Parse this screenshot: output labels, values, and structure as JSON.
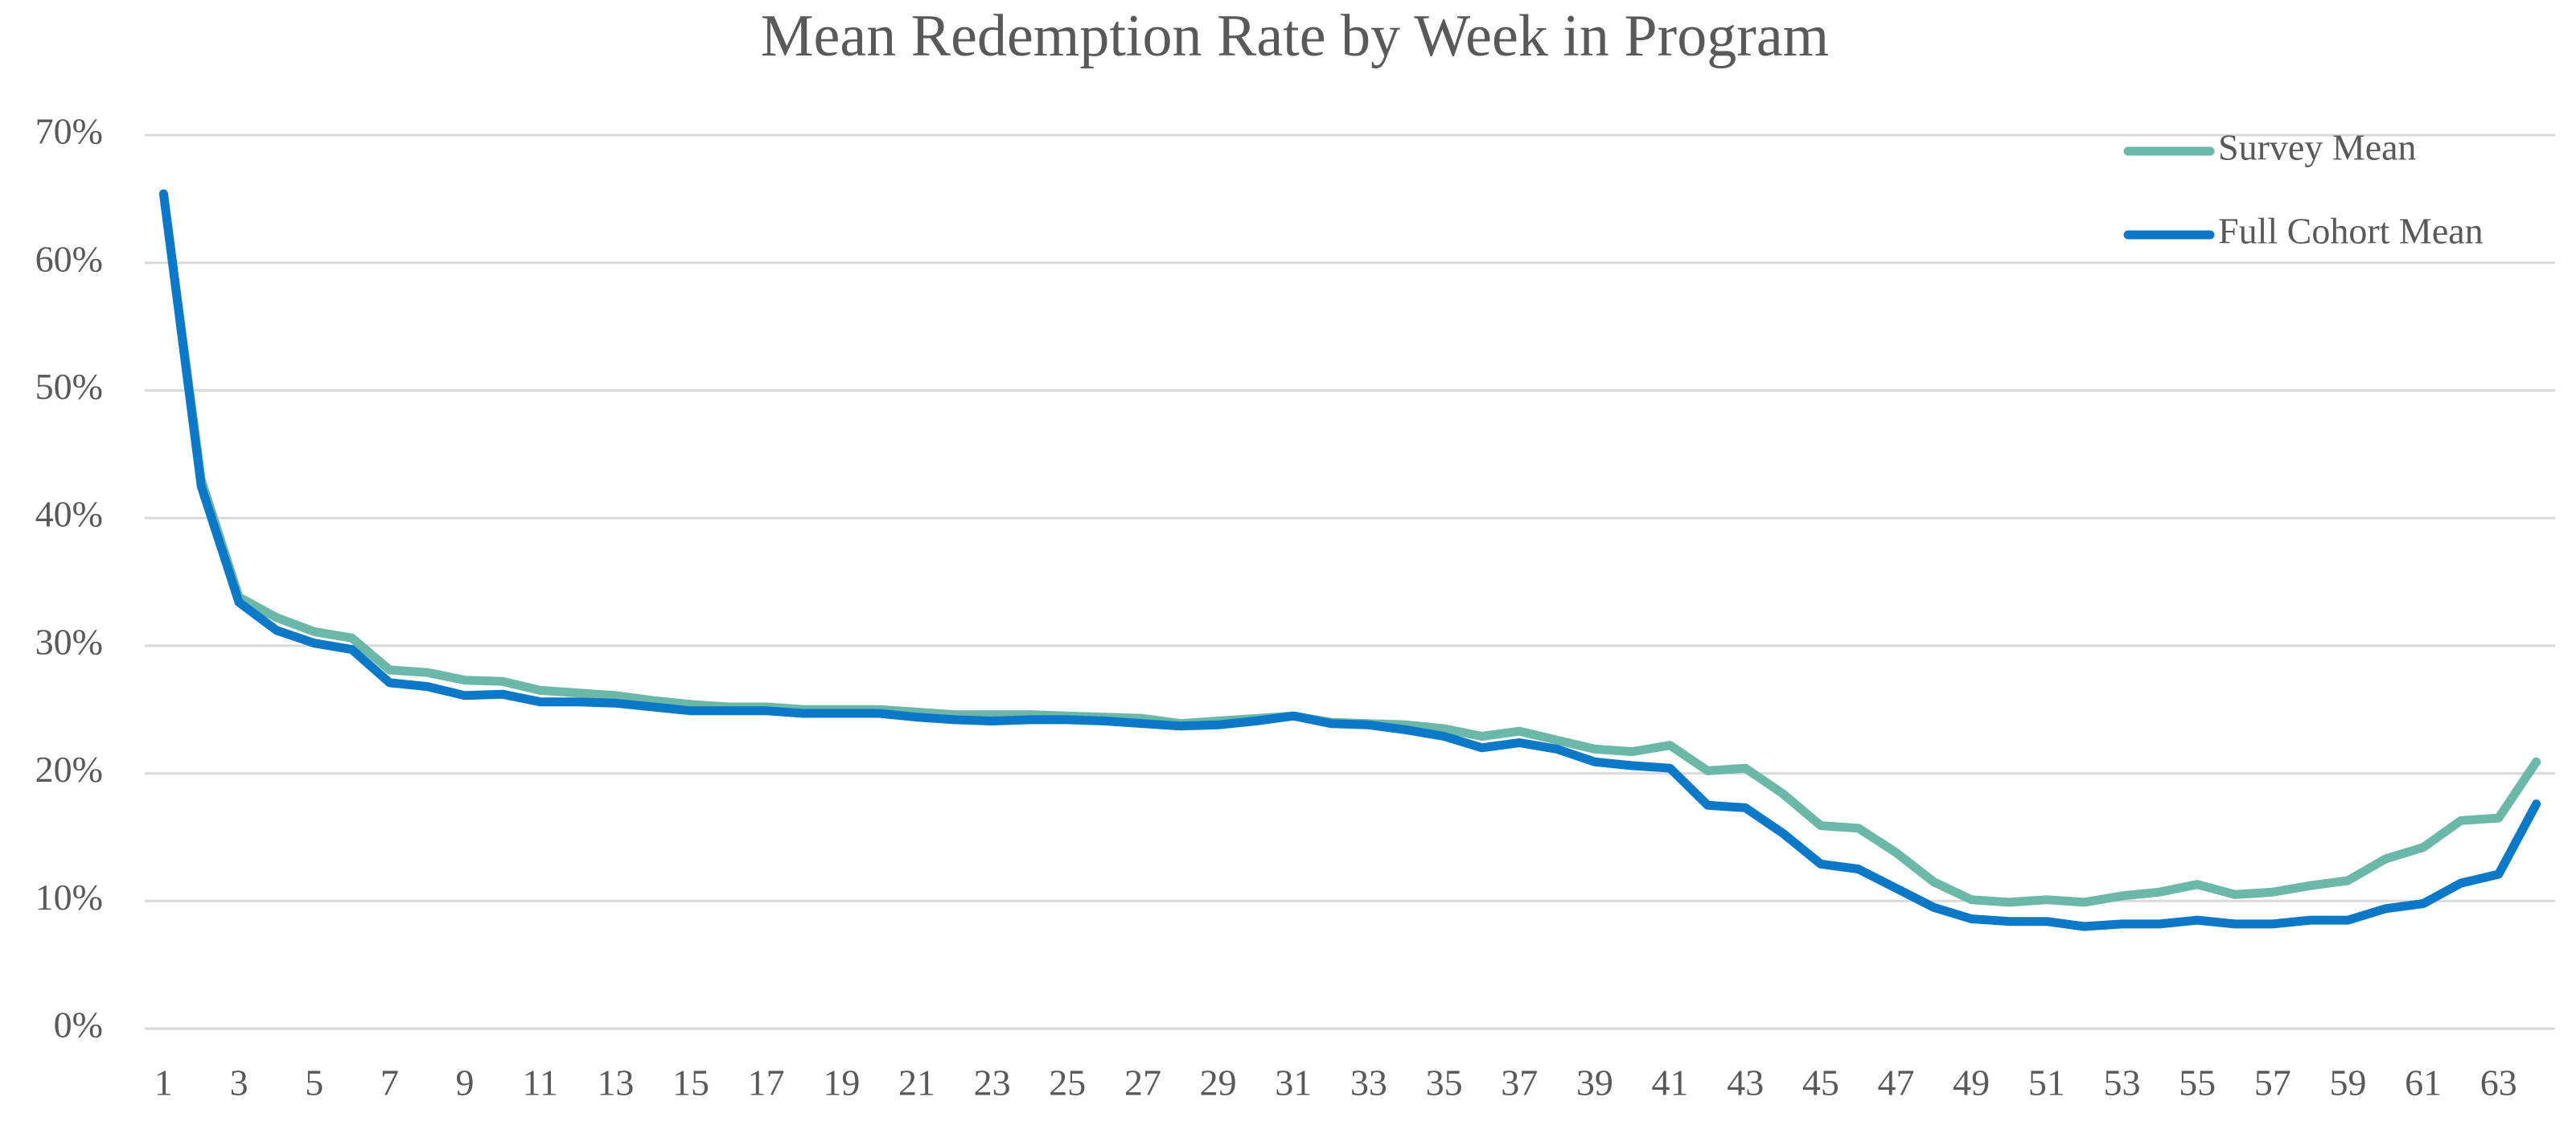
{
  "chart_data": {
    "type": "line",
    "title": "Mean Redemption Rate by Week in Program",
    "categories": [
      "1",
      null,
      "3",
      null,
      "5",
      null,
      "7",
      null,
      "9",
      null,
      "11",
      null,
      "13",
      null,
      "15",
      null,
      "17",
      null,
      "19",
      null,
      "21",
      null,
      "23",
      null,
      "25",
      null,
      "27",
      null,
      "29",
      null,
      "31",
      null,
      "33",
      null,
      "35",
      null,
      "37",
      null,
      "39",
      null,
      "41",
      null,
      "43",
      null,
      "45",
      null,
      "47",
      null,
      "49",
      null,
      "51",
      null,
      "53",
      null,
      "55",
      null,
      "57",
      null,
      "59",
      null,
      "61",
      null,
      "63",
      null
    ],
    "series": [
      {
        "name": "Survey Mean",
        "color": "#6bb8a8",
        "values": [
          65.4,
          43,
          33.8,
          32.2,
          31.1,
          30.6,
          28.1,
          27.9,
          27.3,
          27.2,
          26.5,
          26.3,
          26.1,
          25.7,
          25.4,
          25.2,
          25.2,
          25.0,
          25.0,
          25.0,
          24.8,
          24.6,
          24.6,
          24.6,
          24.5,
          24.4,
          24.3,
          23.9,
          24.1,
          24.3,
          24.5,
          24.0,
          23.9,
          23.8,
          23.5,
          22.9,
          23.3,
          22.6,
          21.9,
          21.7,
          22.2,
          20.2,
          20.4,
          18.4,
          15.9,
          15.7,
          13.8,
          11.5,
          10.1,
          9.9,
          10.1,
          9.9,
          10.4,
          10.7,
          11.3,
          10.5,
          10.7,
          11.2,
          11.6,
          13.3,
          14.2,
          16.3,
          16.5,
          20.9
        ]
      },
      {
        "name": "Full Cohort Mean",
        "color": "#0b78c8",
        "values": [
          65.4,
          42.5,
          33.4,
          31.2,
          30.2,
          29.7,
          27.1,
          26.8,
          26.1,
          26.2,
          25.6,
          25.6,
          25.5,
          25.2,
          24.9,
          24.9,
          24.9,
          24.7,
          24.7,
          24.7,
          24.4,
          24.2,
          24.1,
          24.2,
          24.2,
          24.1,
          23.9,
          23.7,
          23.8,
          24.1,
          24.5,
          23.9,
          23.8,
          23.4,
          22.9,
          22.0,
          22.4,
          21.9,
          20.9,
          20.6,
          20.4,
          17.5,
          17.3,
          15.3,
          12.9,
          12.5,
          11.0,
          9.5,
          8.6,
          8.4,
          8.4,
          8.0,
          8.2,
          8.2,
          8.5,
          8.2,
          8.2,
          8.5,
          8.5,
          9.4,
          9.8,
          11.4,
          12.1,
          17.6
        ]
      }
    ],
    "ylim": [
      0,
      70
    ],
    "yticks": [
      {
        "value": 0,
        "label": "0%"
      },
      {
        "value": 10,
        "label": "10%"
      },
      {
        "value": 20,
        "label": "20%"
      },
      {
        "value": 30,
        "label": "30%"
      },
      {
        "value": 40,
        "label": "40%"
      },
      {
        "value": 50,
        "label": "50%"
      },
      {
        "value": 60,
        "label": "60%"
      },
      {
        "value": 70,
        "label": "70%"
      }
    ],
    "grid": true,
    "legend": "upper right"
  }
}
